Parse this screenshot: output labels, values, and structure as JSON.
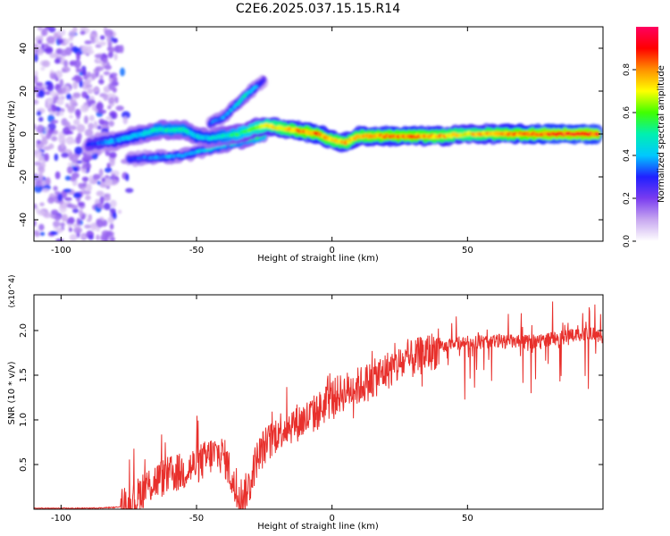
{
  "title": "C2E6.2025.037.15.15.R14",
  "chart_data": [
    {
      "type": "heatmap",
      "xlabel": "Height of straight line (km)",
      "ylabel": "Frequency (Hz)",
      "xlim": [
        -110,
        100
      ],
      "ylim": [
        -50,
        50
      ],
      "x_ticks": [
        "-100",
        "-50",
        "0",
        "50"
      ],
      "x_tick_values": [
        -100,
        -50,
        0,
        50
      ],
      "y_ticks": [
        "40",
        "20",
        "0",
        "-20",
        "-40"
      ],
      "y_tick_values": [
        40,
        20,
        0,
        -20,
        -40
      ],
      "colorbar": {
        "label": "Normalized spectral amplitude",
        "range": [
          0,
          1
        ],
        "ticks": [
          "0.0",
          "0.2",
          "0.4",
          "0.6",
          "0.8"
        ],
        "tick_values": [
          0.0,
          0.2,
          0.4,
          0.6,
          0.8
        ],
        "colormap": [
          "#ffffff",
          "#c8a8f0",
          "#7a3cf0",
          "#2020ff",
          "#00c8ff",
          "#00f0b0",
          "#40ff00",
          "#ffff00",
          "#ff9000",
          "#ff0000",
          "#ff0060"
        ]
      },
      "ridge": {
        "x": [
          -90,
          -80,
          -70,
          -65,
          -55,
          -50,
          -45,
          -40,
          -35,
          -30,
          -25,
          -20,
          -15,
          -10,
          -5,
          0,
          5,
          10,
          20,
          30,
          40,
          50,
          60,
          70,
          80,
          90,
          98
        ],
        "y": [
          -5,
          -3,
          0,
          2,
          2,
          -1,
          -2,
          -1,
          0,
          2,
          4,
          3,
          2,
          1,
          0,
          -3,
          -4,
          -1,
          -1,
          -1,
          -1,
          0,
          0,
          0,
          0,
          0,
          0
        ],
        "amplitude": [
          0.3,
          0.4,
          0.45,
          0.5,
          0.5,
          0.45,
          0.45,
          0.5,
          0.55,
          0.6,
          0.7,
          0.75,
          0.8,
          0.85,
          0.85,
          0.8,
          0.8,
          0.8,
          0.85,
          0.85,
          0.8,
          0.75,
          0.8,
          0.85,
          0.9,
          0.9,
          0.9
        ]
      },
      "secondary_branches": [
        {
          "x": [
            -45,
            -40,
            -35,
            -32,
            -28,
            -25
          ],
          "y": [
            5,
            8,
            14,
            18,
            22,
            25
          ],
          "amplitude": [
            0.35,
            0.4,
            0.45,
            0.5,
            0.4,
            0.3
          ]
        },
        {
          "x": [
            -75,
            -70,
            -65,
            -55,
            -45,
            -35,
            -25
          ],
          "y": [
            -12,
            -11,
            -11,
            -10,
            -7,
            -4,
            -1
          ],
          "amplitude": [
            0.35,
            0.35,
            0.4,
            0.4,
            0.45,
            0.5,
            0.55
          ]
        }
      ],
      "noise_region": {
        "x_range": [
          -110,
          -80
        ],
        "y_range": [
          -50,
          50
        ],
        "amplitude": 0.25
      }
    },
    {
      "type": "line",
      "xlabel": "Height of straight line (km)",
      "ylabel": "SNR (10 * v/v)",
      "y_multiplier": "(x10^4)",
      "xlim": [
        -110,
        100
      ],
      "ylim": [
        0,
        2.4
      ],
      "x_ticks": [
        "-100",
        "-50",
        "0",
        "50"
      ],
      "x_tick_values": [
        -100,
        -50,
        0,
        50
      ],
      "y_ticks": [
        "0.5",
        "1.0",
        "1.5",
        "2.0"
      ],
      "y_tick_values": [
        0.5,
        1.0,
        1.5,
        2.0
      ],
      "series": [
        {
          "color": "#e8302c",
          "x": [
            -110,
            -100,
            -90,
            -80,
            -75,
            -72,
            -70,
            -65,
            -60,
            -55,
            -50,
            -47,
            -45,
            -42,
            -40,
            -38,
            -36,
            -34,
            -32,
            -30,
            -28,
            -25,
            -22,
            -20,
            -15,
            -10,
            -5,
            0,
            5,
            10,
            15,
            20,
            25,
            30,
            35,
            40,
            45,
            50,
            55,
            60,
            65,
            70,
            75,
            80,
            85,
            90,
            95,
            100
          ],
          "values": [
            0.01,
            0.01,
            0.01,
            0.02,
            0.05,
            0.12,
            0.22,
            0.32,
            0.38,
            0.42,
            0.5,
            0.55,
            0.6,
            0.62,
            0.6,
            0.45,
            0.22,
            0.15,
            0.18,
            0.3,
            0.55,
            0.7,
            0.78,
            0.88,
            0.95,
            1.0,
            1.1,
            1.25,
            1.32,
            1.38,
            1.45,
            1.55,
            1.62,
            1.68,
            1.75,
            1.8,
            1.85,
            1.87,
            1.87,
            1.88,
            1.88,
            1.87,
            1.88,
            1.9,
            1.92,
            1.95,
            1.98,
            1.9
          ]
        }
      ]
    }
  ]
}
